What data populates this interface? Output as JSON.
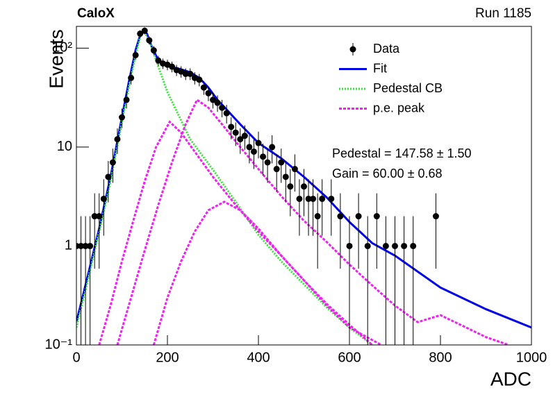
{
  "chart_data": {
    "type": "line",
    "title": "CaloX",
    "subtitle": "Run 1185",
    "x_label": "ADC",
    "y_label": "Events",
    "log_y": true,
    "xlim": [
      0,
      1000
    ],
    "xticks": [
      0,
      200,
      400,
      600,
      800,
      1000
    ],
    "ylim": [
      0.1,
      166
    ],
    "yticks": [
      {
        "value": 0.1,
        "label": "10⁻¹"
      },
      1,
      10,
      {
        "value": 100,
        "label": "10²"
      }
    ],
    "annotations": [
      "Pedestal = 147.58 ± 1.50",
      "Gain = 60.00 ± 0.68"
    ],
    "series": [
      {
        "name": "Data",
        "style": "points",
        "color": "#000000",
        "x": [
          0,
          10,
          20,
          30,
          40,
          50,
          60,
          70,
          80,
          90,
          100,
          110,
          120,
          130,
          140,
          150,
          160,
          170,
          180,
          190,
          200,
          210,
          220,
          230,
          240,
          250,
          260,
          270,
          280,
          290,
          300,
          310,
          320,
          330,
          340,
          350,
          360,
          370,
          380,
          390,
          400,
          410,
          420,
          430,
          440,
          450,
          460,
          470,
          480,
          490,
          500,
          510,
          520,
          530,
          540,
          560,
          580,
          600,
          620,
          640,
          660,
          680,
          700,
          720,
          740,
          790
        ],
        "values": [
          1,
          1,
          1,
          1,
          2,
          2,
          3,
          5,
          7,
          12,
          20,
          30,
          50,
          85,
          140,
          150,
          120,
          95,
          75,
          70,
          68,
          65,
          60,
          58,
          55,
          55,
          50,
          48,
          40,
          35,
          30,
          28,
          25,
          22,
          16,
          14,
          12,
          13,
          10,
          9,
          11,
          8,
          7,
          10,
          6,
          7,
          5,
          4,
          6,
          3,
          4,
          3,
          3,
          2,
          3,
          3,
          2,
          1,
          2,
          1,
          2,
          1,
          1,
          1,
          1,
          2
        ],
        "errors": [
          1,
          1,
          1,
          1,
          1.41,
          1.41,
          1.73,
          2.24,
          2.65,
          3.46,
          4.47,
          5.48,
          7.07,
          9.22,
          11.83,
          12.25,
          10.95,
          9.75,
          8.66,
          8.37,
          8.25,
          8.06,
          7.75,
          7.62,
          7.42,
          7.42,
          7.07,
          6.93,
          6.32,
          5.92,
          5.48,
          5.29,
          5,
          4.69,
          4,
          3.74,
          3.46,
          3.61,
          3.16,
          3,
          3.32,
          2.83,
          2.65,
          3.16,
          2.45,
          2.65,
          2.24,
          2,
          2.45,
          1.73,
          2,
          1.73,
          1.73,
          1.41,
          1.73,
          1.73,
          1.41,
          1,
          1.41,
          1,
          1.41,
          1,
          1,
          1,
          1,
          1.41
        ]
      },
      {
        "name": "Fit",
        "style": "solid",
        "color": "#0000e6",
        "x": [
          0,
          25,
          50,
          75,
          100,
          115,
          130,
          140,
          148,
          155,
          165,
          180,
          200,
          225,
          250,
          270,
          290,
          310,
          330,
          360,
          400,
          450,
          500,
          550,
          600,
          650,
          700,
          800,
          900,
          1000
        ],
        "values": [
          0.17,
          0.5,
          1.5,
          5,
          20,
          45,
          95,
          135,
          150,
          140,
          105,
          75,
          66,
          62,
          57,
          50,
          40,
          30,
          24,
          17,
          11,
          7.7,
          5,
          3.1,
          1.75,
          1.07,
          0.8,
          0.38,
          0.23,
          0.15
        ]
      },
      {
        "name": "Pedestal CB",
        "style": "dotted",
        "color": "#33e633",
        "x": [
          0,
          25,
          50,
          75,
          100,
          115,
          130,
          140,
          148,
          160,
          180,
          200,
          250,
          300,
          350,
          400,
          450,
          500,
          550,
          600,
          650
        ],
        "values": [
          0.15,
          0.45,
          1.4,
          4.5,
          18,
          40,
          85,
          130,
          148,
          120,
          65,
          36,
          12,
          5.9,
          2.8,
          1.3,
          0.7,
          0.41,
          0.24,
          0.15,
          0.1
        ]
      },
      {
        "name": "p.e. peak",
        "style": "dashed",
        "color": "#ee22ee",
        "curves": [
          {
            "x": [
              50,
              75,
              100,
              125,
              150,
              175,
              205,
              230,
              260,
              300,
              350,
              400,
              450,
              500,
              550,
              600,
              650,
              700
            ],
            "values": [
              0.1,
              0.25,
              0.7,
              1.8,
              4.5,
              10,
              18,
              14,
              9,
              5,
              2.6,
              1.4,
              0.8,
              0.45,
              0.26,
              0.16,
              0.1,
              0.06
            ]
          },
          {
            "x": [
              90,
              120,
              150,
              180,
              210,
              240,
              265,
              290,
              320,
              360,
              400,
              450,
              500,
              550,
              600,
              650,
              700,
              750,
              800,
              900,
              950
            ],
            "values": [
              0.1,
              0.3,
              0.9,
              2.6,
              7,
              17,
              30,
              25,
              17,
              10,
              6,
              3.2,
              1.8,
              1.1,
              0.65,
              0.4,
              0.25,
              0.17,
              0.2,
              0.12,
              0.1
            ]
          },
          {
            "x": [
              170,
              200,
              230,
              260,
              290,
              325,
              360,
              400,
              450,
              500,
              550,
              600,
              670
            ],
            "values": [
              0.1,
              0.3,
              0.7,
              1.4,
              2.3,
              2.8,
              2.3,
              1.5,
              0.8,
              0.45,
              0.25,
              0.15,
              0.1
            ]
          }
        ]
      }
    ]
  }
}
